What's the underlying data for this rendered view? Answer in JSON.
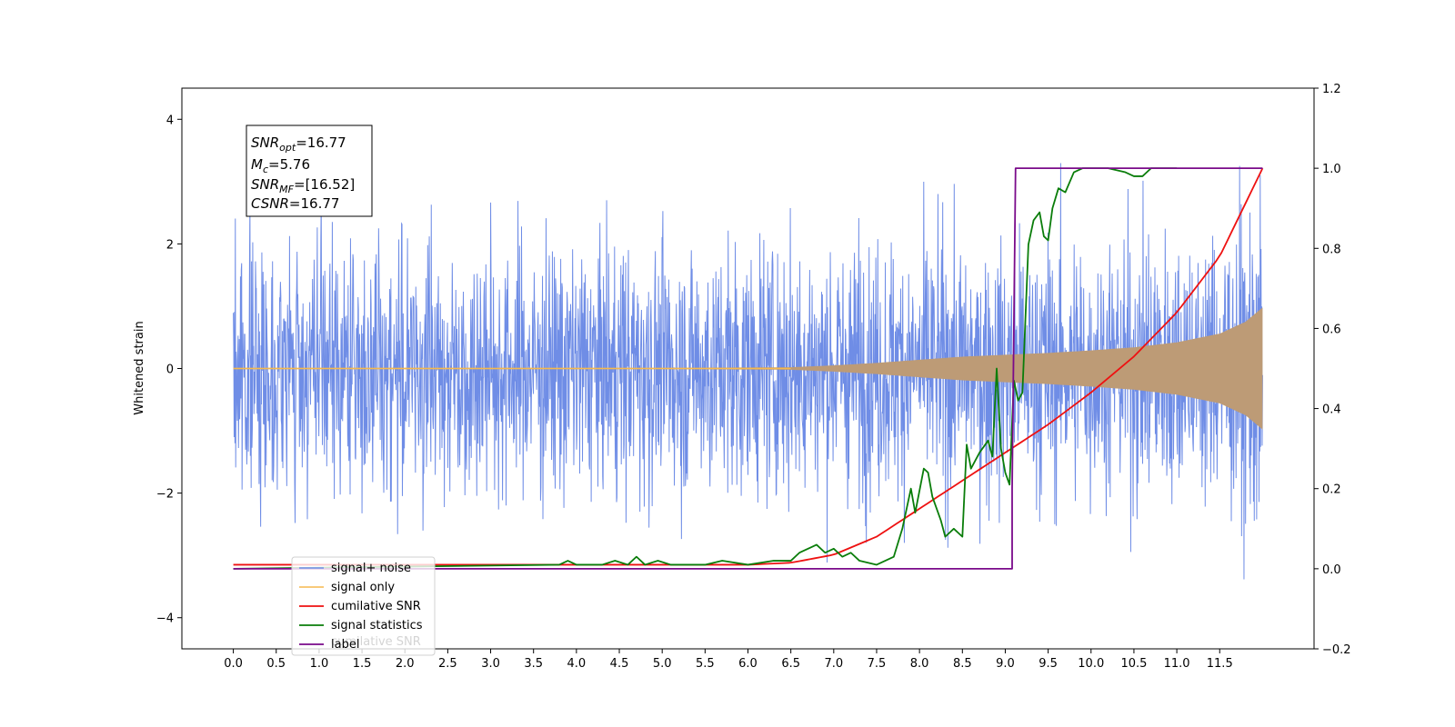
{
  "chart_data": {
    "type": "line",
    "ylabel": "Whitened strain",
    "x_ticks": [
      "0.0",
      "0.5",
      "1.0",
      "1.5",
      "2.0",
      "2.5",
      "3.0",
      "3.5",
      "4.0",
      "4.5",
      "5.0",
      "5.5",
      "6.0",
      "6.5",
      "7.0",
      "7.5",
      "8.0",
      "8.5",
      "9.0",
      "9.5",
      "10.0",
      "10.5",
      "11.0",
      "11.5"
    ],
    "y_left_ticks": [
      "4",
      "2",
      "0",
      "−2",
      "−4"
    ],
    "y_right_ticks": [
      "1.2",
      "1.0",
      "0.8",
      "0.6",
      "0.4",
      "0.2",
      "0.0",
      "−0.2"
    ],
    "xlim": [
      -0.6,
      12.6
    ],
    "ylim_left": [
      -4.5,
      4.5
    ],
    "ylim_right": [
      -0.2,
      1.2
    ],
    "annotation": {
      "snr_opt": {
        "sym": "SNR",
        "sub": "opt",
        "val": "=16.77"
      },
      "mc": {
        "sym": "M",
        "sub": "c",
        "val": "=5.76"
      },
      "snr_mf": {
        "sym": "SNR",
        "sub": "MF",
        "val": "=[16.52]"
      },
      "csnr": {
        "sym": "CSNR",
        "val": "=16.77"
      }
    },
    "legend": {
      "placement": "lower-left",
      "entries": [
        "signal+ noise",
        "signal only",
        "cumilative SNR",
        "signal statistics",
        "label"
      ],
      "hidden_text": "cumilative SNR"
    },
    "colors": {
      "noise": "#6f8de6",
      "signal": "#f5b94e",
      "cumulative": "#ee1111",
      "statistics": "#0a7d0a",
      "label": "#7a0a8a",
      "overlap": "#bd9b76"
    },
    "series": [
      {
        "name": "signal+ noise",
        "axis": "left",
        "envelope_x": [
          0.0,
          2.0,
          4.0,
          6.0,
          8.0,
          9.0,
          10.0,
          11.0,
          11.5,
          12.0
        ],
        "envelope_typical": [
          1.6,
          1.6,
          1.6,
          1.6,
          1.6,
          1.6,
          1.6,
          1.6,
          1.6,
          1.6
        ],
        "envelope_peak": [
          2.6,
          3.4,
          4.1,
          3.3,
          3.3,
          3.0,
          3.3,
          3.0,
          3.1,
          4.1
        ]
      },
      {
        "name": "signal only",
        "axis": "left",
        "x": [
          0.0,
          5.0,
          6.5,
          7.0,
          7.5,
          8.0,
          8.5,
          9.0,
          9.5,
          10.0,
          10.5,
          11.0,
          11.5,
          11.8,
          12.0
        ],
        "amplitude": [
          0.01,
          0.01,
          0.02,
          0.05,
          0.09,
          0.14,
          0.19,
          0.22,
          0.25,
          0.29,
          0.34,
          0.42,
          0.56,
          0.75,
          0.98
        ]
      },
      {
        "name": "cumilative SNR",
        "axis": "right",
        "x": [
          0.0,
          1.0,
          2.0,
          3.0,
          4.0,
          5.0,
          6.0,
          6.5,
          7.0,
          7.5,
          8.0,
          8.5,
          9.0,
          9.5,
          10.0,
          10.5,
          11.0,
          11.5,
          12.0
        ],
        "y": [
          0.01,
          0.01,
          0.01,
          0.01,
          0.01,
          0.01,
          0.01,
          0.015,
          0.035,
          0.08,
          0.15,
          0.22,
          0.29,
          0.36,
          0.44,
          0.53,
          0.64,
          0.78,
          1.0
        ]
      },
      {
        "name": "signal statistics",
        "axis": "right",
        "x": [
          0.0,
          3.8,
          3.9,
          4.0,
          4.3,
          4.45,
          4.6,
          4.7,
          4.8,
          4.95,
          5.1,
          5.5,
          5.7,
          6.0,
          6.3,
          6.5,
          6.6,
          6.8,
          6.9,
          7.0,
          7.1,
          7.2,
          7.3,
          7.5,
          7.7,
          7.8,
          7.9,
          7.95,
          8.05,
          8.1,
          8.15,
          8.25,
          8.3,
          8.4,
          8.5,
          8.55,
          8.6,
          8.7,
          8.8,
          8.85,
          8.9,
          8.95,
          9.0,
          9.05,
          9.1,
          9.15,
          9.2,
          9.27,
          9.33,
          9.4,
          9.45,
          9.5,
          9.55,
          9.62,
          9.7,
          9.8,
          9.9,
          10.0,
          10.2,
          10.4,
          10.5,
          10.6,
          10.7,
          10.8,
          10.9,
          11.0
        ],
        "y": [
          0.0,
          0.01,
          0.02,
          0.01,
          0.01,
          0.02,
          0.01,
          0.03,
          0.01,
          0.02,
          0.01,
          0.01,
          0.02,
          0.01,
          0.02,
          0.02,
          0.04,
          0.06,
          0.04,
          0.05,
          0.03,
          0.04,
          0.02,
          0.01,
          0.03,
          0.1,
          0.2,
          0.14,
          0.25,
          0.24,
          0.18,
          0.12,
          0.08,
          0.1,
          0.08,
          0.31,
          0.25,
          0.29,
          0.32,
          0.28,
          0.5,
          0.3,
          0.24,
          0.21,
          0.47,
          0.42,
          0.44,
          0.81,
          0.87,
          0.89,
          0.83,
          0.82,
          0.9,
          0.95,
          0.94,
          0.99,
          1.0,
          1.0,
          1.0,
          0.99,
          0.98,
          0.98,
          1.0,
          1.0,
          1.0,
          1.0
        ]
      },
      {
        "name": "label",
        "axis": "right",
        "x": [
          0.0,
          9.08,
          9.08,
          9.12,
          12.0
        ],
        "y": [
          0.0,
          0.0,
          0.2,
          1.0,
          1.0
        ]
      }
    ]
  }
}
